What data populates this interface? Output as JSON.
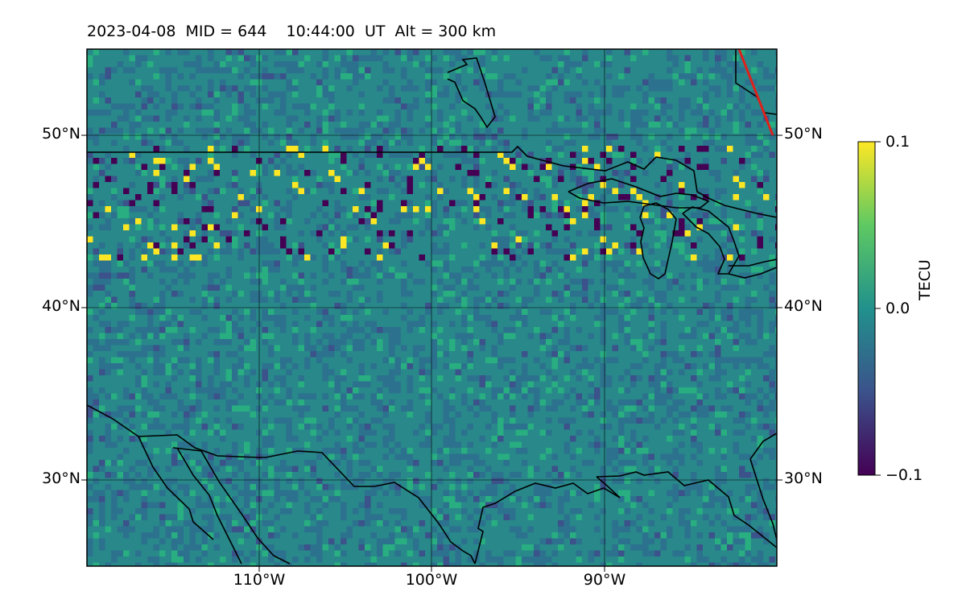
{
  "title": "2023-04-08  MID = 644    10:44:00  UT  Alt = 300 km",
  "map": {
    "extent": {
      "lon": [
        -120,
        -80
      ],
      "lat": [
        25,
        55
      ]
    },
    "gridlines": {
      "lon": [
        -110,
        -100,
        -90
      ],
      "lat": [
        30,
        40,
        50
      ]
    },
    "lat_labels": [
      "50°N",
      "40°N",
      "30°N"
    ],
    "lon_labels": [
      "110°W",
      "100°W",
      "90°W"
    ],
    "background": "#28888a",
    "coastline_color": "#000000",
    "terminator_color": "#e0201a"
  },
  "colorbar": {
    "label": "TECU",
    "min": -0.1,
    "max": 0.1,
    "tick_labels": [
      "0.1",
      "0.0",
      "−0.1"
    ],
    "colormap": "viridis",
    "colors": [
      "#440154",
      "#3b528b",
      "#21918c",
      "#5ec962",
      "#fde725"
    ]
  }
}
